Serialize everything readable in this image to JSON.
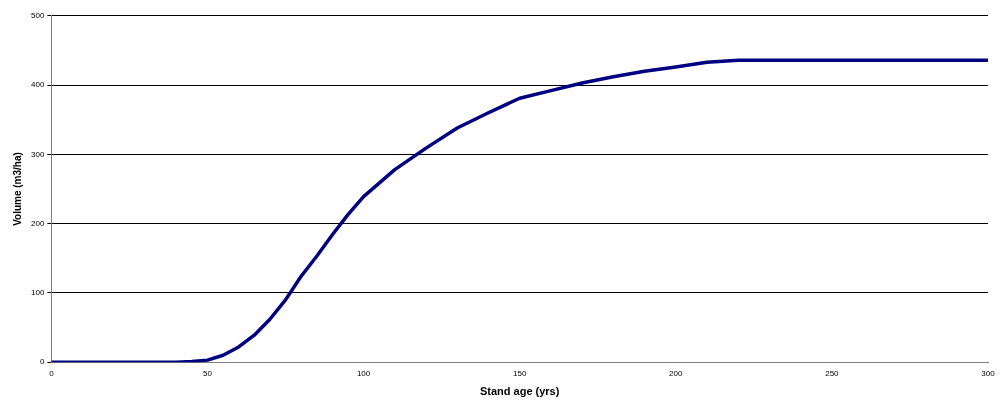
{
  "chart_data": {
    "type": "line",
    "xlabel": "Stand age (yrs)",
    "ylabel": "Volume (m3/ha)",
    "x": [
      0,
      10,
      20,
      30,
      40,
      45,
      50,
      55,
      60,
      65,
      70,
      75,
      80,
      85,
      90,
      95,
      100,
      110,
      120,
      130,
      140,
      150,
      160,
      170,
      180,
      190,
      200,
      210,
      220,
      250,
      300
    ],
    "series": [
      {
        "color": "#000080",
        "values": [
          0,
          0,
          0,
          0,
          0,
          1,
          3,
          10,
          22,
          39,
          62,
          90,
          124,
          153,
          184,
          213,
          239,
          278,
          309,
          338,
          360,
          381,
          392,
          403,
          412,
          420,
          426,
          433,
          436,
          436,
          436
        ]
      }
    ],
    "xlim": [
      0,
      300
    ],
    "xticks": [
      0,
      50,
      100,
      150,
      200,
      250,
      300
    ],
    "ylim": [
      0,
      500
    ],
    "yticks": [
      0,
      100,
      200,
      300,
      400,
      500
    ],
    "grid": "y",
    "legend": false,
    "marker": "none",
    "line_style": "solid"
  }
}
